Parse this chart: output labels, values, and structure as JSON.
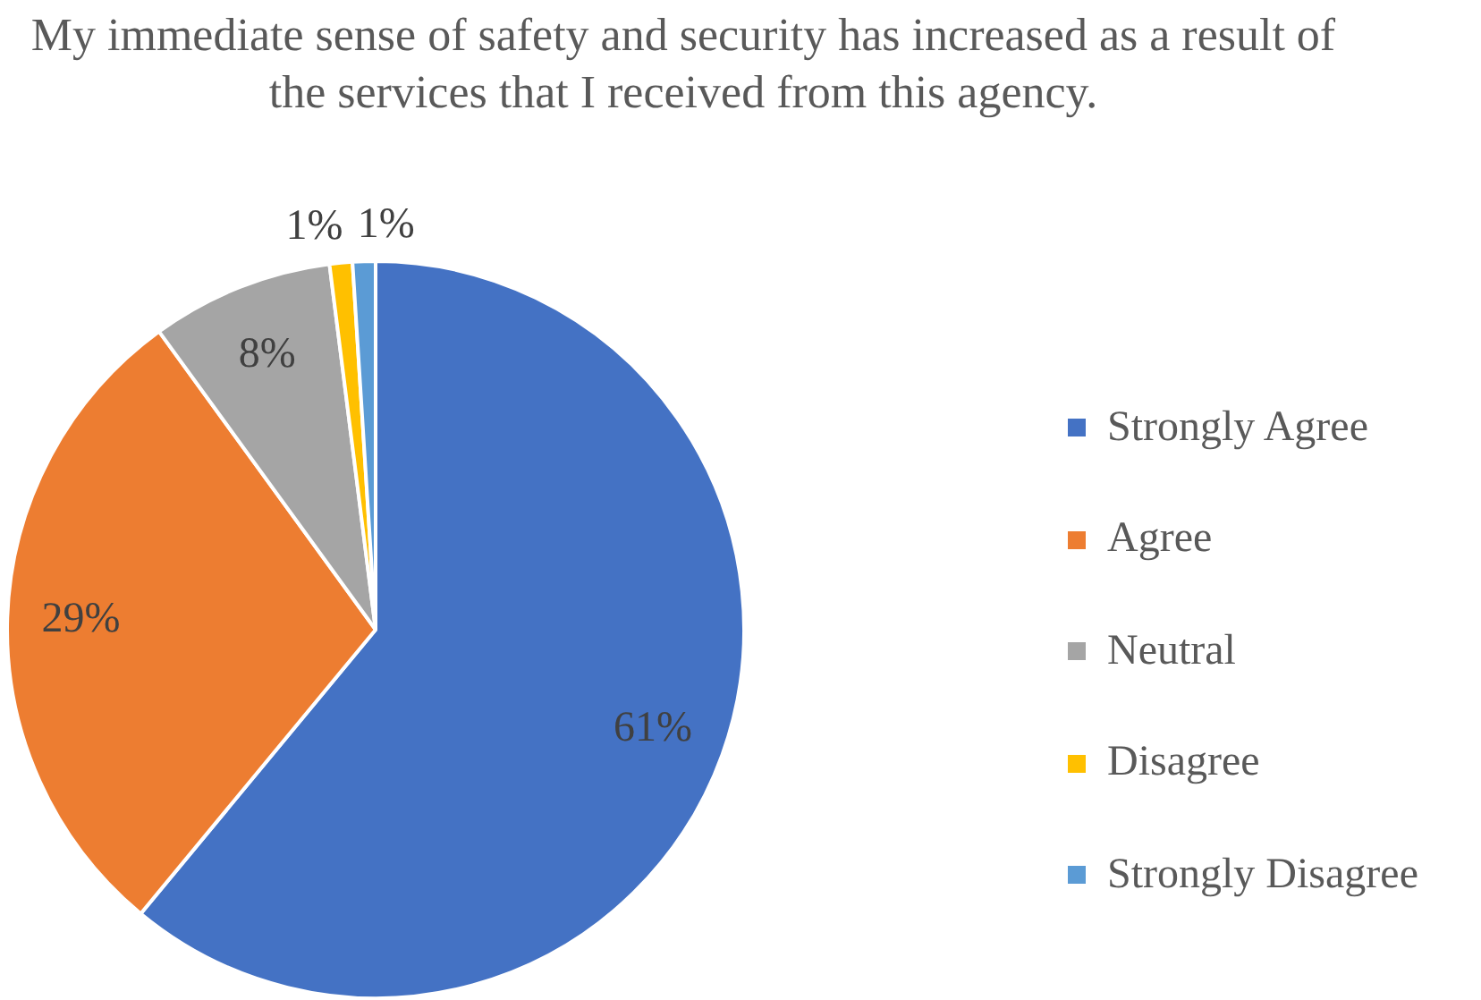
{
  "chart_data": {
    "type": "pie",
    "title": "My immediate sense of safety and security has increased as a result of the services that I received from this agency.",
    "categories": [
      "Strongly Agree",
      "Agree",
      "Neutral",
      "Disagree",
      "Strongly Disagree"
    ],
    "values": [
      61,
      29,
      8,
      1,
      1
    ],
    "value_labels": [
      "61%",
      "29%",
      "8%",
      "1%",
      "1%"
    ],
    "colors": [
      "#4472c4",
      "#ed7d31",
      "#a5a5a5",
      "#ffc000",
      "#5b9bd5"
    ],
    "legend": "right"
  }
}
